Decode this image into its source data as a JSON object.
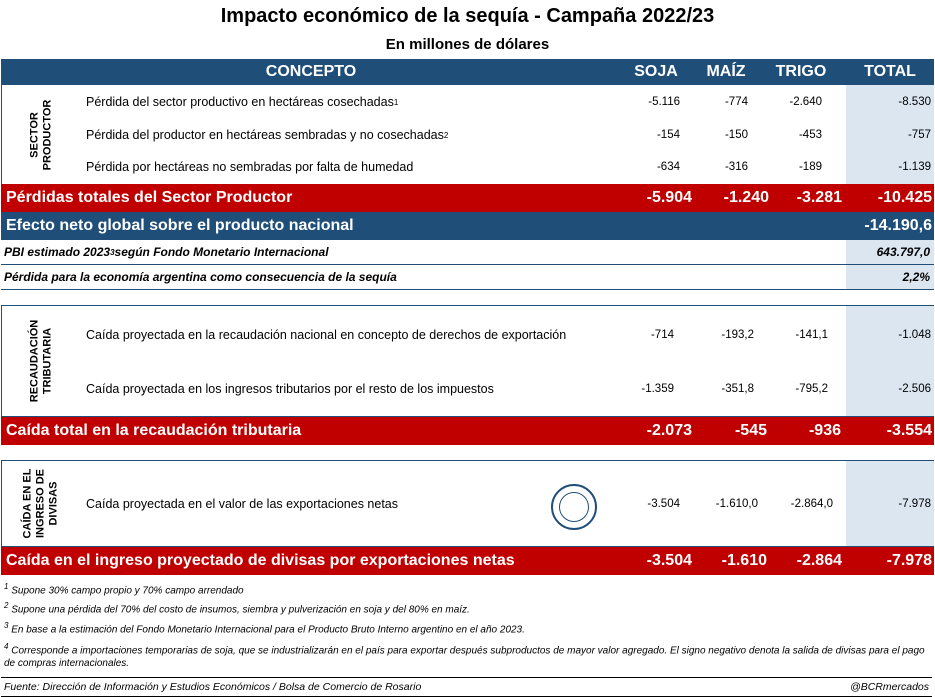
{
  "title": "Impacto económico de la sequía - Campaña 2022/23",
  "subtitle": "En millones de dólares",
  "header": {
    "concepto": "CONCEPTO",
    "soja": "SOJA",
    "maiz": "MAÍZ",
    "trigo": "TRIGO",
    "total": "TOTAL"
  },
  "sector_productor": {
    "label_line1": "SECTOR",
    "label_line2": "PRODUCTOR",
    "rows": [
      {
        "concepto": "Pérdida del sector productivo en hectáreas cosechadas",
        "sup": "1",
        "soja": "-5.116",
        "maiz": "-774",
        "trigo": "-2.640",
        "total": "-8.530"
      },
      {
        "concepto": "Pérdida del productor en hectáreas sembradas y no cosechadas",
        "sup": "2",
        "soja": "-154",
        "maiz": "-150",
        "trigo": "-453",
        "total": "-757"
      },
      {
        "concepto": "Pérdida por hectáreas no sembradas por falta de humedad",
        "sup": "",
        "soja": "-634",
        "maiz": "-316",
        "trigo": "-189",
        "total": "-1.139"
      }
    ],
    "total_row": {
      "concepto": "Pérdidas totales del Sector Productor",
      "soja": "-5.904",
      "maiz": "-1.240",
      "trigo": "-3.281",
      "total": "-10.425"
    }
  },
  "efecto_neto": {
    "concepto": "Efecto neto global sobre el producto nacional",
    "total": "-14.190,6"
  },
  "pbi": {
    "concepto_pre": "PBI estimado 2023",
    "sup": "3",
    "concepto_post": " según Fondo Monetario Internacional",
    "total": "643.797,0"
  },
  "perdida_economia": {
    "concepto": "Pérdida para la economía argentina como consecuencia de la sequía",
    "total": "2,2%"
  },
  "recaudacion": {
    "label_line1": "RECAUDACIÓN",
    "label_line2": "TRIBUTARIA",
    "rows": [
      {
        "concepto": "Caída proyectada en la recaudación nacional en concepto de derechos de exportación",
        "soja": "-714",
        "maiz": "-193,2",
        "trigo": "-141,1",
        "total": "-1.048"
      },
      {
        "concepto": "Caída proyectada en los ingresos tributarios por el resto de los impuestos",
        "soja": "-1.359",
        "maiz": "-351,8",
        "trigo": "-795,2",
        "total": "-2.506"
      }
    ],
    "total_row": {
      "concepto": "Caída total en la recaudación tributaria",
      "soja": "-2.073",
      "maiz": "-545",
      "trigo": "-936",
      "total": "-3.554"
    }
  },
  "divisas": {
    "label_line1": "CAÍDA EN EL",
    "label_line2": "INGRESO DE",
    "label_line3": "DIVISAS",
    "rows": [
      {
        "concepto": "Caída proyectada en el valor de las exportaciones netas",
        "soja": "-3.504",
        "maiz": "-1.610,0",
        "trigo": "-2.864,0",
        "total": "-7.978"
      }
    ],
    "total_row": {
      "concepto": "Caída en el ingreso proyectado de divisas por exportaciones netas",
      "soja": "-3.504",
      "maiz": "-1.610",
      "trigo": "-2.864",
      "total": "-7.978"
    }
  },
  "footnotes": [
    {
      "n": "1",
      "text": "Supone 30% campo propio y 70% campo arrendado"
    },
    {
      "n": "2",
      "text": "Supone una pérdida del 70% del costo de insumos, siembra y pulverización en soja y del 80% en maíz."
    },
    {
      "n": "3",
      "text": "En base a la estimación del Fondo Monetario Internacional para el Producto Bruto Interno argentino en el año 2023."
    },
    {
      "n": "4",
      "text": "Corresponde a importaciones temporarias de soja, que se industrializarán en el país para exportar después subproductos de mayor valor agregado. El signo negativo denota la salida de divisas para el pago de compras internacionales."
    }
  ],
  "source": "Fuente: Dirección de Información y Estudios Económicos / Bolsa de Comercio de Rosario",
  "handle": "@BCRmercados",
  "colors": {
    "navy": "#1f4e79",
    "red": "#c00000",
    "light_blue": "#dce6f1"
  },
  "seal_icon": "bolsa-de-comercio-seal-icon"
}
